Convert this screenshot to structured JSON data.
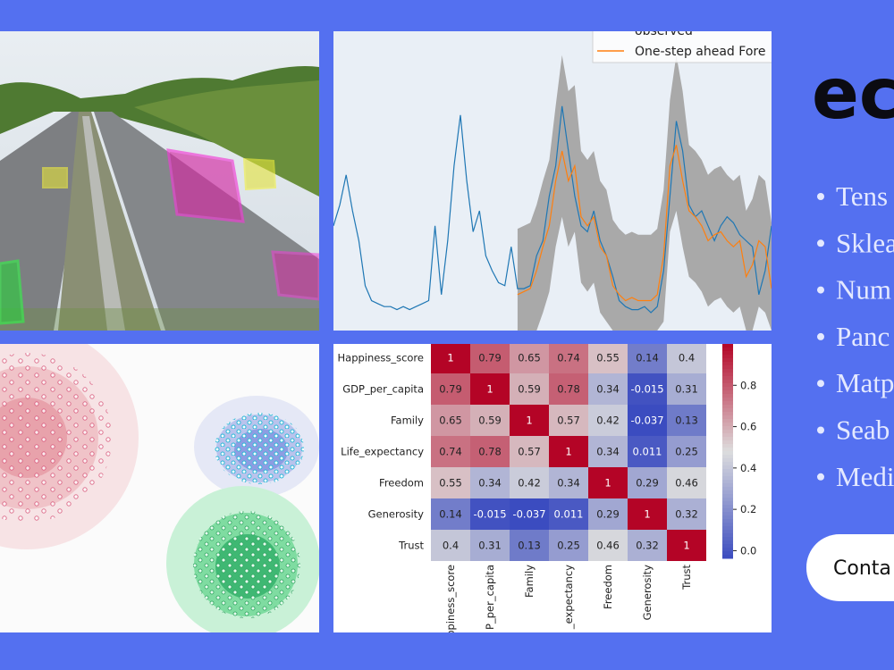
{
  "chart_data": [
    {
      "type": "line",
      "ylim": [
        0,
        100
      ],
      "series": [
        {
          "name": "observed",
          "color": "#1f77b4",
          "values": [
            35,
            42,
            52,
            40,
            30,
            15,
            10,
            9,
            8,
            8,
            7,
            8,
            7,
            8,
            9,
            10,
            35,
            12,
            30,
            55,
            72,
            50,
            33,
            40,
            25,
            20,
            16,
            15,
            28,
            14,
            14,
            15,
            25,
            30,
            45,
            55,
            75,
            60,
            45,
            35,
            33,
            40,
            30,
            25,
            18,
            10,
            8,
            7,
            7,
            8,
            6,
            8,
            20,
            45,
            70,
            60,
            42,
            38,
            40,
            35,
            30,
            35,
            38,
            36,
            32,
            30,
            28,
            12,
            20,
            35
          ]
        },
        {
          "name": "One-step ahead Fore",
          "color": "#ff7f0e",
          "values": [
            null,
            null,
            null,
            null,
            null,
            null,
            null,
            null,
            null,
            null,
            null,
            null,
            null,
            null,
            null,
            null,
            null,
            null,
            null,
            null,
            null,
            null,
            null,
            null,
            null,
            null,
            null,
            null,
            null,
            12,
            13,
            14,
            20,
            28,
            35,
            50,
            60,
            50,
            55,
            38,
            35,
            38,
            28,
            25,
            15,
            12,
            10,
            11,
            10,
            10,
            10,
            12,
            25,
            55,
            62,
            50,
            40,
            38,
            35,
            30,
            32,
            33,
            30,
            28,
            30,
            18,
            22,
            30,
            28,
            14
          ]
        }
      ],
      "band": {
        "color": "#a9a9a9",
        "upper": [
          null,
          null,
          null,
          null,
          null,
          null,
          null,
          null,
          null,
          null,
          null,
          null,
          null,
          null,
          null,
          null,
          null,
          null,
          null,
          null,
          null,
          null,
          null,
          null,
          null,
          null,
          null,
          null,
          null,
          34,
          35,
          36,
          42,
          50,
          57,
          75,
          92,
          80,
          82,
          60,
          57,
          60,
          50,
          47,
          37,
          34,
          32,
          33,
          32,
          32,
          32,
          34,
          47,
          77,
          92,
          80,
          62,
          60,
          57,
          52,
          54,
          55,
          52,
          50,
          52,
          40,
          44,
          52,
          50,
          36
        ],
        "lower": [
          null,
          null,
          null,
          null,
          null,
          null,
          null,
          null,
          null,
          null,
          null,
          null,
          null,
          null,
          null,
          null,
          null,
          null,
          null,
          null,
          null,
          null,
          null,
          null,
          null,
          null,
          null,
          null,
          null,
          0,
          0,
          0,
          0,
          6,
          13,
          28,
          38,
          28,
          33,
          16,
          13,
          16,
          6,
          3,
          0,
          0,
          0,
          0,
          0,
          0,
          0,
          0,
          3,
          33,
          40,
          28,
          18,
          16,
          13,
          8,
          10,
          11,
          8,
          6,
          8,
          0,
          0,
          8,
          6,
          0
        ]
      }
    },
    {
      "type": "heatmap",
      "rows": [
        "Happiness_score",
        "GDP_per_capita",
        "Family",
        "Life_expectancy",
        "Freedom",
        "Generosity",
        "Trust"
      ],
      "columns": [
        "ppiness_score",
        "P_per_capita",
        "Family",
        "_expectancy",
        "Freedom",
        "Generosity",
        "Trust"
      ],
      "values": [
        [
          1,
          0.79,
          0.65,
          0.74,
          0.55,
          0.14,
          0.4
        ],
        [
          0.79,
          1,
          0.59,
          0.78,
          0.34,
          -0.015,
          0.31
        ],
        [
          0.65,
          0.59,
          1,
          0.57,
          0.42,
          -0.037,
          0.13
        ],
        [
          0.74,
          0.78,
          0.57,
          1,
          0.34,
          0.011,
          0.25
        ],
        [
          0.55,
          0.34,
          0.42,
          0.34,
          1,
          0.29,
          0.46
        ],
        [
          0.14,
          -0.015,
          -0.037,
          0.011,
          0.29,
          1,
          0.32
        ],
        [
          0.4,
          0.31,
          0.13,
          0.25,
          0.46,
          0.32,
          1
        ]
      ],
      "colormap": [
        "#3b4cc0",
        "#dddddd",
        "#b40426"
      ],
      "zlim": [
        -0.037,
        1
      ],
      "zticks": [
        {
          "value": 0,
          "label": "0.0"
        },
        0.2,
        0.4,
        0.6,
        0.8
      ]
    }
  ],
  "sidebar": {
    "logo": "ec",
    "items": [
      "Tens",
      "Sklea",
      "Num",
      "Panc",
      "Matp",
      "Seab",
      "Medi"
    ],
    "button": "Conta"
  }
}
